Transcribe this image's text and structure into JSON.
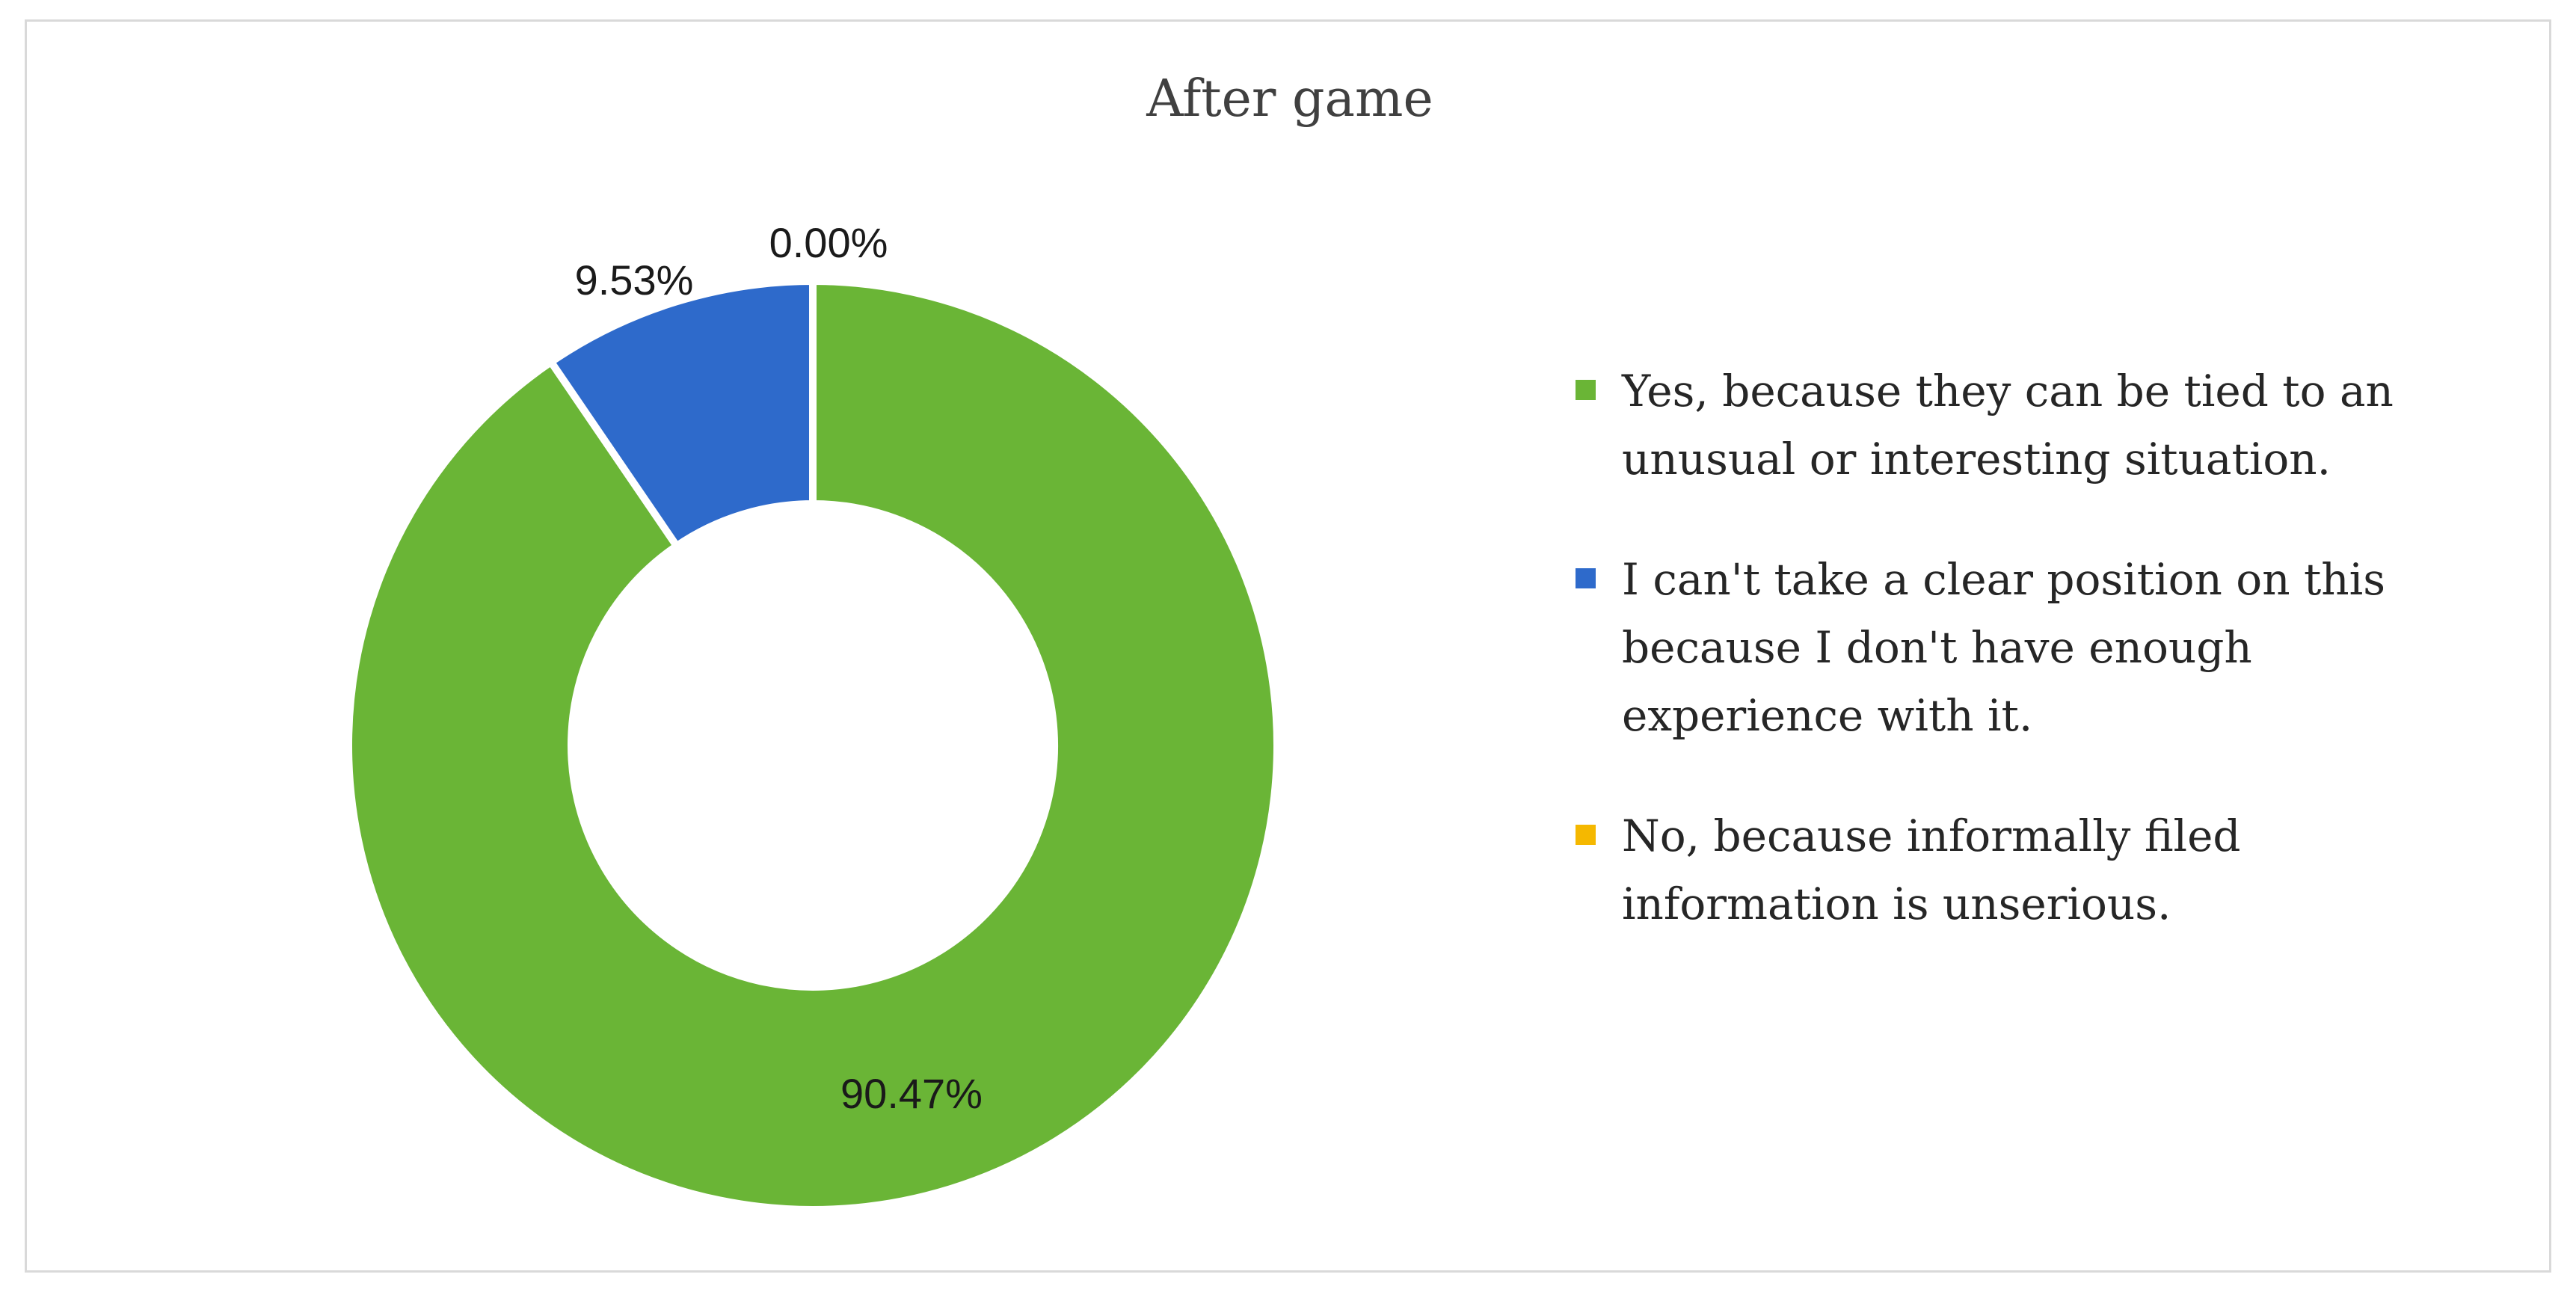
{
  "chart_data": {
    "type": "pie",
    "title": "After game",
    "categories": [
      "Yes, because they can be tied to an unusual or interesting situation.",
      "I can't take a clear position on this because I don't have enough experience with it.",
      " No, because informally filed information is unserious."
    ],
    "values": [
      90.47,
      9.53,
      0.0
    ],
    "data_labels": [
      "90.47%",
      "9.53%",
      "0.00%"
    ],
    "colors": [
      "#6ab536",
      "#2e6acb",
      "#f5b800"
    ],
    "legend_position": "right",
    "donut": true
  }
}
